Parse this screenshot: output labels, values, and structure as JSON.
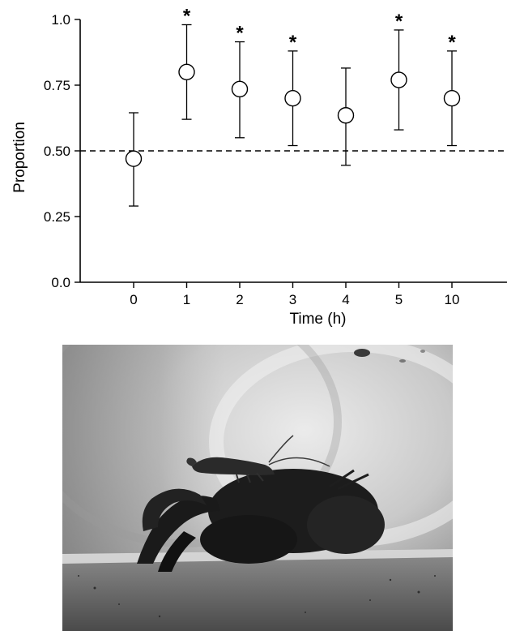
{
  "chart_data": {
    "type": "scatter",
    "title": "",
    "xlabel": "Time (h)",
    "ylabel": "Proportion",
    "categories": [
      "0",
      "1",
      "2",
      "3",
      "4",
      "5",
      "10"
    ],
    "y_ticks": [
      "0.0",
      "0.25",
      "0.50",
      "0.75",
      "1.0"
    ],
    "ylim": [
      0,
      1
    ],
    "grid": false,
    "reference_line": {
      "y": 0.5,
      "style": "dashed"
    },
    "series": [
      {
        "values": [
          0.47,
          0.8,
          0.735,
          0.7,
          0.635,
          0.77,
          0.7
        ],
        "err_high": [
          0.645,
          0.98,
          0.915,
          0.88,
          0.815,
          0.96,
          0.88
        ],
        "err_low": [
          0.29,
          0.62,
          0.55,
          0.52,
          0.445,
          0.58,
          0.52
        ],
        "significant": [
          false,
          true,
          true,
          true,
          false,
          true,
          true
        ],
        "marker": "open-circle"
      }
    ],
    "significance_symbol": "*"
  },
  "photo": {
    "subject": "crayfish-with-shrimp-photo",
    "colors": {
      "dark": "#1e1e1e",
      "mid": "#6a6a6a",
      "light": "#d8d8d8"
    }
  }
}
